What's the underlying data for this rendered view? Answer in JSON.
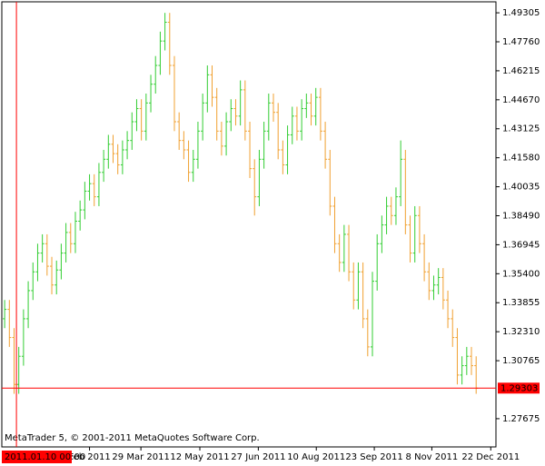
{
  "chart_data": {
    "type": "ohlc",
    "footer": "MetaTrader 5, © 2001-2011 MetaQuotes Software Corp.",
    "up_color": "#32cd32",
    "down_color": "#f0a030",
    "crosshair_color": "#ff0000",
    "open": [
      1.33,
      1.335,
      1.32,
      1.295,
      1.31,
      1.33,
      1.345,
      1.355,
      1.365,
      1.37,
      1.358,
      1.348,
      1.356,
      1.365,
      1.376,
      1.37,
      1.382,
      1.388,
      1.398,
      1.402,
      1.395,
      1.408,
      1.415,
      1.423,
      1.418,
      1.412,
      1.42,
      1.425,
      1.435,
      1.442,
      1.43,
      1.445,
      1.455,
      1.465,
      1.478,
      1.488,
      1.465,
      1.435,
      1.425,
      1.42,
      1.408,
      1.415,
      1.43,
      1.445,
      1.46,
      1.448,
      1.43,
      1.422,
      1.435,
      1.442,
      1.438,
      1.452,
      1.43,
      1.41,
      1.395,
      1.415,
      1.43,
      1.445,
      1.44,
      1.42,
      1.412,
      1.428,
      1.438,
      1.43,
      1.442,
      1.445,
      1.438,
      1.448,
      1.43,
      1.415,
      1.39,
      1.37,
      1.36,
      1.375,
      1.355,
      1.34,
      1.355,
      1.33,
      1.315,
      1.35,
      1.37,
      1.38,
      1.39,
      1.385,
      1.395,
      1.415,
      1.38,
      1.365,
      1.385,
      1.37,
      1.355,
      1.345,
      1.348,
      1.352,
      1.34,
      1.33,
      1.32,
      1.3,
      1.305,
      1.31,
      1.305
    ],
    "high": [
      1.34,
      1.34,
      1.325,
      1.315,
      1.335,
      1.35,
      1.36,
      1.37,
      1.375,
      1.375,
      1.363,
      1.361,
      1.37,
      1.381,
      1.381,
      1.387,
      1.393,
      1.403,
      1.407,
      1.407,
      1.413,
      1.42,
      1.428,
      1.428,
      1.423,
      1.425,
      1.43,
      1.44,
      1.447,
      1.447,
      1.45,
      1.46,
      1.47,
      1.483,
      1.493,
      1.493,
      1.47,
      1.44,
      1.43,
      1.425,
      1.42,
      1.435,
      1.45,
      1.465,
      1.465,
      1.453,
      1.435,
      1.44,
      1.447,
      1.447,
      1.457,
      1.457,
      1.435,
      1.415,
      1.42,
      1.435,
      1.45,
      1.45,
      1.445,
      1.425,
      1.433,
      1.443,
      1.443,
      1.447,
      1.45,
      1.45,
      1.453,
      1.453,
      1.435,
      1.42,
      1.395,
      1.375,
      1.38,
      1.38,
      1.36,
      1.36,
      1.36,
      1.335,
      1.355,
      1.375,
      1.385,
      1.395,
      1.395,
      1.4,
      1.425,
      1.42,
      1.385,
      1.39,
      1.39,
      1.375,
      1.36,
      1.353,
      1.357,
      1.357,
      1.345,
      1.335,
      1.325,
      1.31,
      1.315,
      1.315,
      1.31
    ],
    "low": [
      1.325,
      1.315,
      1.29,
      1.29,
      1.305,
      1.325,
      1.34,
      1.35,
      1.36,
      1.353,
      1.343,
      1.343,
      1.351,
      1.36,
      1.365,
      1.365,
      1.377,
      1.383,
      1.393,
      1.39,
      1.39,
      1.403,
      1.41,
      1.413,
      1.407,
      1.407,
      1.415,
      1.42,
      1.43,
      1.425,
      1.425,
      1.44,
      1.45,
      1.46,
      1.473,
      1.46,
      1.43,
      1.42,
      1.415,
      1.403,
      1.403,
      1.41,
      1.425,
      1.44,
      1.443,
      1.425,
      1.417,
      1.417,
      1.43,
      1.433,
      1.433,
      1.425,
      1.405,
      1.385,
      1.39,
      1.41,
      1.425,
      1.435,
      1.415,
      1.407,
      1.407,
      1.423,
      1.425,
      1.425,
      1.437,
      1.433,
      1.433,
      1.425,
      1.41,
      1.385,
      1.365,
      1.355,
      1.355,
      1.35,
      1.335,
      1.335,
      1.325,
      1.31,
      1.31,
      1.345,
      1.365,
      1.375,
      1.38,
      1.38,
      1.39,
      1.375,
      1.36,
      1.36,
      1.365,
      1.35,
      1.34,
      1.34,
      1.343,
      1.335,
      1.325,
      1.315,
      1.295,
      1.295,
      1.3,
      1.3,
      1.29
    ],
    "close": [
      1.335,
      1.32,
      1.295,
      1.31,
      1.33,
      1.345,
      1.355,
      1.365,
      1.37,
      1.358,
      1.348,
      1.356,
      1.365,
      1.376,
      1.37,
      1.382,
      1.388,
      1.398,
      1.402,
      1.395,
      1.408,
      1.415,
      1.423,
      1.418,
      1.412,
      1.42,
      1.425,
      1.435,
      1.442,
      1.43,
      1.445,
      1.455,
      1.465,
      1.478,
      1.488,
      1.465,
      1.435,
      1.425,
      1.42,
      1.408,
      1.415,
      1.43,
      1.445,
      1.46,
      1.448,
      1.43,
      1.422,
      1.435,
      1.442,
      1.438,
      1.452,
      1.43,
      1.41,
      1.395,
      1.415,
      1.43,
      1.445,
      1.44,
      1.42,
      1.412,
      1.428,
      1.438,
      1.43,
      1.442,
      1.445,
      1.438,
      1.448,
      1.43,
      1.415,
      1.39,
      1.37,
      1.36,
      1.375,
      1.355,
      1.34,
      1.355,
      1.33,
      1.315,
      1.35,
      1.37,
      1.38,
      1.39,
      1.385,
      1.395,
      1.415,
      1.38,
      1.365,
      1.385,
      1.37,
      1.355,
      1.345,
      1.348,
      1.352,
      1.34,
      1.33,
      1.32,
      1.3,
      1.305,
      1.31,
      1.305,
      1.293
    ],
    "xlim": [
      -0.6,
      104.2
    ],
    "xticks": [
      {
        "value": 18.0,
        "label": "Feb 2011"
      },
      {
        "value": 28.9,
        "label": "29 Mar 2011"
      },
      {
        "value": 41.4,
        "label": "12 May 2011"
      },
      {
        "value": 53.8,
        "label": "27 Jun 2011"
      },
      {
        "value": 66.1,
        "label": "10 Aug 2011"
      },
      {
        "value": 78.4,
        "label": "23 Sep 2011"
      },
      {
        "value": 90.6,
        "label": "8 Nov 2011"
      },
      {
        "value": 103.1,
        "label": "22 Dec 2011"
      }
    ],
    "ylim": [
      1.2617,
      1.4989
    ],
    "yticks": [
      1.49305,
      {
        "value": 1.4776,
        "label": "1.47760"
      },
      1.46215,
      {
        "value": 1.4467,
        "label": "1.44670"
      },
      1.43125,
      {
        "value": 1.4158,
        "label": "1.41580"
      },
      1.40035,
      {
        "value": 1.3849,
        "label": "1.38490"
      },
      1.36945,
      {
        "value": 1.354,
        "label": "1.35400"
      },
      1.33855,
      {
        "value": 1.3231,
        "label": "1.32310"
      },
      1.30765,
      1.27675
    ],
    "crosshair": {
      "x": 2.5,
      "label": "2011.01.10 00:00",
      "price": 1.29303
    }
  }
}
